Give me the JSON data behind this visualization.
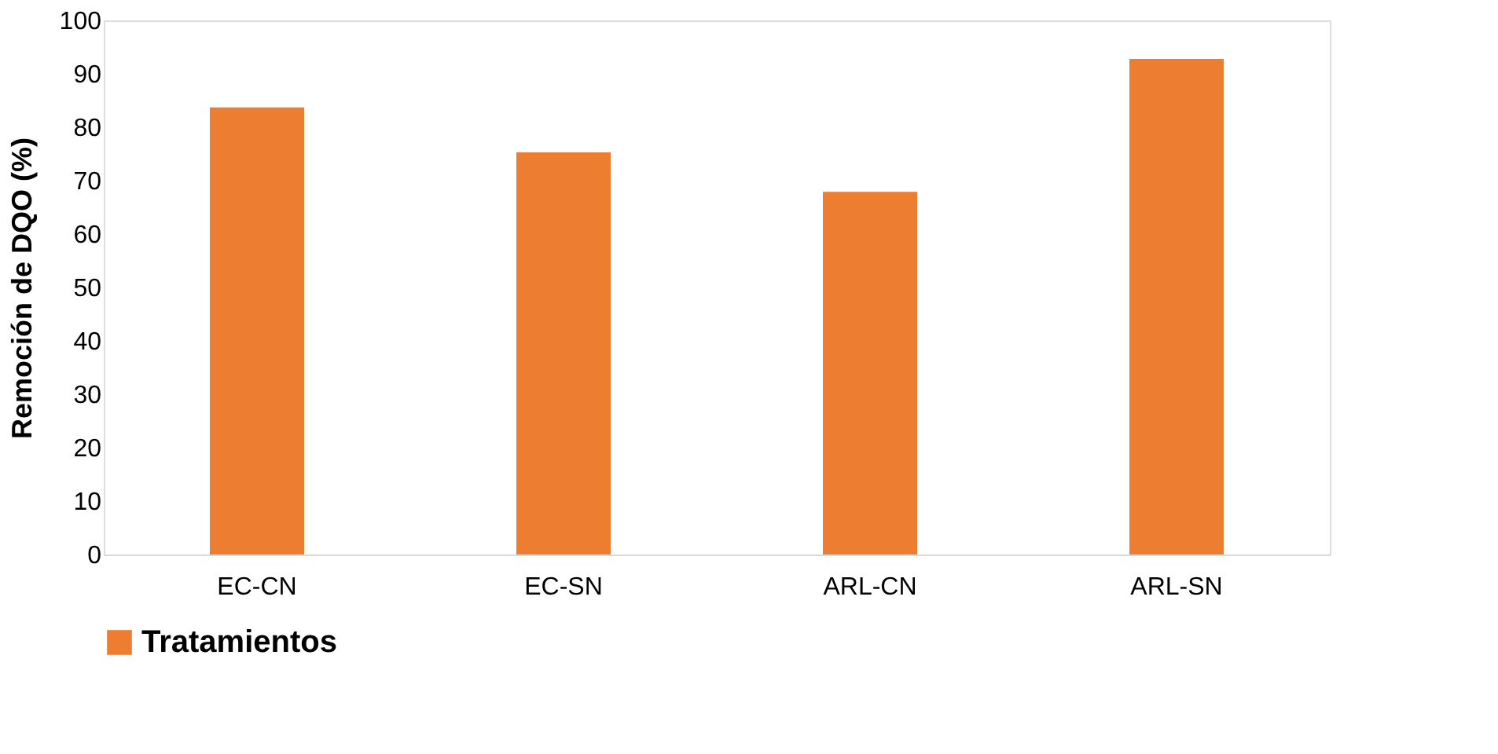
{
  "chart_data": {
    "type": "bar",
    "ylabel": "Remoción de DQO  (%)",
    "categories": [
      "EC-CN",
      "EC-SN",
      "ARL-CN",
      "ARL-SN"
    ],
    "series": [
      {
        "name": "Tratamientos",
        "color": "#ed7d31",
        "values": [
          83.7,
          75.3,
          67.9,
          92.8
        ]
      }
    ],
    "ylim": [
      0,
      100
    ],
    "yticks": [
      0,
      10,
      20,
      30,
      40,
      50,
      60,
      70,
      80,
      90,
      100
    ],
    "grid": false,
    "legend": "bottom"
  }
}
